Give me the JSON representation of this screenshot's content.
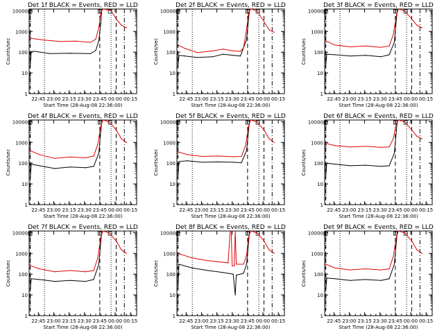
{
  "colors": {
    "events": "#000000",
    "lld": "#e00000",
    "axis": "#000000",
    "background": "#ffffff"
  },
  "common": {
    "ylabel": "Counts/sec",
    "xlabel": "Start Time (28-Aug-08 22:36:00)",
    "y_ticks": [
      "1",
      "10",
      "100",
      "1000",
      "10000"
    ],
    "x_ticks": [
      "22:45",
      "23:00",
      "23:15",
      "23:30",
      "23:45",
      "00:00",
      "00:15"
    ],
    "x_tick_minutes": [
      9,
      24,
      39,
      54,
      69,
      84,
      99
    ],
    "xlim_minutes": [
      0,
      105
    ],
    "ylim": [
      1,
      12000
    ],
    "y_scale": "log"
  },
  "chart_data": [
    {
      "type": "line",
      "title": "Det 1f BLACK = Events, RED = LLD",
      "series": [
        {
          "color": "events",
          "points": [
            [
              1,
              20
            ],
            [
              2,
              105
            ],
            [
              5,
              110
            ],
            [
              20,
              85
            ],
            [
              40,
              88
            ],
            [
              60,
              85
            ],
            [
              65,
              120
            ],
            [
              68,
              350
            ],
            [
              70,
              2500
            ],
            [
              71,
              12000
            ]
          ]
        },
        {
          "color": "lld",
          "points": [
            [
              1,
              480
            ],
            [
              5,
              440
            ],
            [
              15,
              380
            ],
            [
              30,
              330
            ],
            [
              45,
              340
            ],
            [
              60,
              300
            ],
            [
              65,
              420
            ],
            [
              68,
              1500
            ],
            [
              70,
              8000
            ],
            [
              72,
              12000
            ],
            [
              73,
              12000
            ],
            [
              80,
              10000
            ],
            [
              85,
              4000
            ],
            [
              90,
              2000
            ],
            [
              95,
              1500
            ]
          ]
        }
      ],
      "dashed_vlines_minutes": [
        1,
        69,
        85
      ],
      "dotted_vlines_minutes": [
        15,
        80
      ],
      "dashdot_vlines_minutes": [
        93
      ]
    },
    {
      "type": "line",
      "title": "Det 2f BLACK = Events, RED = LLD",
      "series": [
        {
          "color": "events",
          "points": [
            [
              1,
              20
            ],
            [
              2,
              70
            ],
            [
              8,
              65
            ],
            [
              20,
              55
            ],
            [
              35,
              60
            ],
            [
              45,
              80
            ],
            [
              55,
              70
            ],
            [
              62,
              65
            ],
            [
              68,
              400
            ],
            [
              71,
              12000
            ]
          ]
        },
        {
          "color": "lld",
          "points": [
            [
              1,
              220
            ],
            [
              8,
              150
            ],
            [
              20,
              95
            ],
            [
              35,
              115
            ],
            [
              45,
              140
            ],
            [
              55,
              115
            ],
            [
              62,
              110
            ],
            [
              65,
              160
            ],
            [
              68,
              1200
            ],
            [
              70,
              8000
            ],
            [
              72,
              12000
            ],
            [
              78,
              10000
            ],
            [
              85,
              3000
            ],
            [
              90,
              1200
            ],
            [
              95,
              900
            ]
          ]
        }
      ],
      "dashed_vlines_minutes": [
        1,
        69,
        85
      ],
      "dotted_vlines_minutes": [
        15,
        80
      ],
      "dashdot_vlines_minutes": [
        93
      ]
    },
    {
      "type": "line",
      "title": "Det 3f BLACK = Events, RED = LLD",
      "series": [
        {
          "color": "events",
          "points": [
            [
              1,
              20
            ],
            [
              2,
              80
            ],
            [
              10,
              75
            ],
            [
              25,
              65
            ],
            [
              40,
              70
            ],
            [
              55,
              60
            ],
            [
              63,
              75
            ],
            [
              68,
              300
            ],
            [
              71,
              12000
            ]
          ]
        },
        {
          "color": "lld",
          "points": [
            [
              1,
              350
            ],
            [
              10,
              220
            ],
            [
              25,
              180
            ],
            [
              40,
              200
            ],
            [
              55,
              170
            ],
            [
              63,
              200
            ],
            [
              67,
              700
            ],
            [
              70,
              6000
            ],
            [
              72,
              12000
            ],
            [
              78,
              10000
            ],
            [
              85,
              4000
            ],
            [
              90,
              2000
            ],
            [
              95,
              1500
            ]
          ]
        }
      ],
      "dashed_vlines_minutes": [
        1,
        69,
        85
      ],
      "dotted_vlines_minutes": [
        15,
        80
      ],
      "dashdot_vlines_minutes": [
        93
      ]
    },
    {
      "type": "line",
      "title": "Det 4f BLACK = Events, RED = LLD",
      "series": [
        {
          "color": "events",
          "points": [
            [
              1,
              15
            ],
            [
              2,
              90
            ],
            [
              10,
              75
            ],
            [
              25,
              55
            ],
            [
              40,
              65
            ],
            [
              55,
              60
            ],
            [
              63,
              70
            ],
            [
              68,
              300
            ],
            [
              71,
              12000
            ]
          ]
        },
        {
          "color": "lld",
          "points": [
            [
              1,
              400
            ],
            [
              10,
              260
            ],
            [
              25,
              170
            ],
            [
              40,
              200
            ],
            [
              55,
              180
            ],
            [
              63,
              220
            ],
            [
              67,
              800
            ],
            [
              70,
              6000
            ],
            [
              72,
              12000
            ],
            [
              78,
              10000
            ],
            [
              85,
              4000
            ],
            [
              90,
              1500
            ],
            [
              95,
              1000
            ]
          ]
        }
      ],
      "dashed_vlines_minutes": [
        1,
        69,
        85
      ],
      "dotted_vlines_minutes": [
        15,
        80
      ],
      "dashdot_vlines_minutes": [
        93
      ]
    },
    {
      "type": "line",
      "title": "Det 5f BLACK = Events, RED = LLD",
      "series": [
        {
          "color": "events",
          "points": [
            [
              1,
              20
            ],
            [
              2,
              120
            ],
            [
              10,
              130
            ],
            [
              25,
              110
            ],
            [
              40,
              115
            ],
            [
              55,
              110
            ],
            [
              63,
              105
            ],
            [
              68,
              400
            ],
            [
              71,
              12000
            ]
          ]
        },
        {
          "color": "lld",
          "points": [
            [
              1,
              350
            ],
            [
              10,
              260
            ],
            [
              25,
              210
            ],
            [
              40,
              220
            ],
            [
              55,
              205
            ],
            [
              63,
              210
            ],
            [
              67,
              700
            ],
            [
              70,
              6000
            ],
            [
              72,
              12000
            ],
            [
              78,
              10000
            ],
            [
              85,
              4000
            ],
            [
              90,
              1500
            ],
            [
              95,
              1000
            ]
          ]
        }
      ],
      "dashed_vlines_minutes": [
        1,
        69,
        85
      ],
      "dotted_vlines_minutes": [
        15,
        80
      ],
      "dashdot_vlines_minutes": [
        93
      ]
    },
    {
      "type": "line",
      "title": "Det 6f BLACK = Events, RED = LLD",
      "series": [
        {
          "color": "events",
          "points": [
            [
              1,
              20
            ],
            [
              2,
              100
            ],
            [
              10,
              90
            ],
            [
              25,
              75
            ],
            [
              40,
              80
            ],
            [
              55,
              70
            ],
            [
              63,
              75
            ],
            [
              68,
              300
            ],
            [
              71,
              12000
            ]
          ]
        },
        {
          "color": "lld",
          "points": [
            [
              1,
              900
            ],
            [
              10,
              700
            ],
            [
              25,
              600
            ],
            [
              40,
              650
            ],
            [
              55,
              580
            ],
            [
              63,
              600
            ],
            [
              67,
              1500
            ],
            [
              70,
              8000
            ],
            [
              72,
              12000
            ],
            [
              78,
              10000
            ],
            [
              85,
              4000
            ],
            [
              90,
              2000
            ],
            [
              95,
              1500
            ]
          ]
        }
      ],
      "dashed_vlines_minutes": [
        1,
        69,
        85
      ],
      "dotted_vlines_minutes": [
        15,
        80
      ],
      "dashdot_vlines_minutes": [
        93
      ]
    },
    {
      "type": "line",
      "title": "Det 7f BLACK = Events, RED = LLD",
      "series": [
        {
          "color": "events",
          "points": [
            [
              1,
              15
            ],
            [
              2,
              60
            ],
            [
              10,
              55
            ],
            [
              25,
              45
            ],
            [
              40,
              50
            ],
            [
              55,
              45
            ],
            [
              63,
              55
            ],
            [
              68,
              300
            ],
            [
              71,
              12000
            ]
          ]
        },
        {
          "color": "lld",
          "points": [
            [
              1,
              260
            ],
            [
              10,
              180
            ],
            [
              25,
              130
            ],
            [
              40,
              150
            ],
            [
              55,
              130
            ],
            [
              63,
              150
            ],
            [
              67,
              600
            ],
            [
              70,
              6000
            ],
            [
              72,
              12000
            ],
            [
              78,
              10000
            ],
            [
              85,
              4000
            ],
            [
              90,
              1500
            ],
            [
              95,
              1000
            ]
          ]
        }
      ],
      "dashed_vlines_minutes": [
        1,
        69,
        85
      ],
      "dotted_vlines_minutes": [
        15,
        80
      ],
      "dashdot_vlines_minutes": [
        93
      ]
    },
    {
      "type": "line",
      "title": "Det 8f BLACK = Events, RED = LLD",
      "series": [
        {
          "color": "events",
          "points": [
            [
              1,
              20
            ],
            [
              2,
              300
            ],
            [
              15,
              200
            ],
            [
              30,
              150
            ],
            [
              45,
              120
            ],
            [
              55,
              100
            ],
            [
              57,
              10
            ],
            [
              58,
              90
            ],
            [
              65,
              110
            ],
            [
              68,
              300
            ],
            [
              71,
              12000
            ]
          ]
        },
        {
          "color": "lld",
          "points": [
            [
              1,
              1000
            ],
            [
              15,
              600
            ],
            [
              30,
              450
            ],
            [
              50,
              350
            ],
            [
              52,
              12000
            ],
            [
              53,
              12000
            ],
            [
              54,
              250
            ],
            [
              56,
              250
            ],
            [
              57,
              12000
            ],
            [
              58,
              300
            ],
            [
              65,
              300
            ],
            [
              68,
              800
            ],
            [
              70,
              6000
            ],
            [
              72,
              12000
            ],
            [
              78,
              10000
            ],
            [
              85,
              4000
            ],
            [
              90,
              1500
            ],
            [
              95,
              1000
            ]
          ]
        }
      ],
      "dashed_vlines_minutes": [
        1,
        69,
        85
      ],
      "dotted_vlines_minutes": [
        15,
        80
      ],
      "dashdot_vlines_minutes": [
        93
      ]
    },
    {
      "type": "line",
      "title": "Det 9f BLACK = Events, RED = LLD",
      "series": [
        {
          "color": "events",
          "points": [
            [
              1,
              15
            ],
            [
              2,
              65
            ],
            [
              10,
              60
            ],
            [
              25,
              50
            ],
            [
              40,
              55
            ],
            [
              55,
              50
            ],
            [
              63,
              60
            ],
            [
              68,
              300
            ],
            [
              71,
              12000
            ]
          ]
        },
        {
          "color": "lld",
          "points": [
            [
              1,
              300
            ],
            [
              10,
              200
            ],
            [
              25,
              160
            ],
            [
              40,
              180
            ],
            [
              55,
              160
            ],
            [
              63,
              180
            ],
            [
              67,
              700
            ],
            [
              70,
              6000
            ],
            [
              72,
              12000
            ],
            [
              78,
              10000
            ],
            [
              85,
              4000
            ],
            [
              90,
              1500
            ],
            [
              95,
              1000
            ]
          ]
        }
      ],
      "dashed_vlines_minutes": [
        1,
        69,
        85
      ],
      "dotted_vlines_minutes": [
        15,
        80
      ],
      "dashdot_vlines_minutes": [
        93
      ]
    }
  ]
}
